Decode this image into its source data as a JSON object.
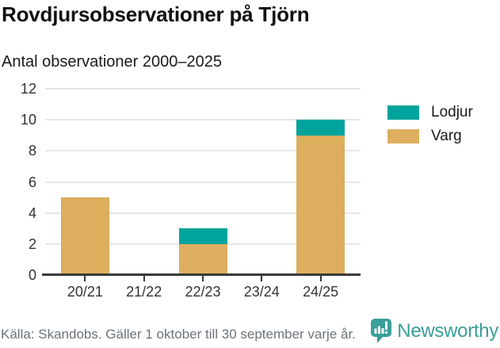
{
  "header": {
    "title": "Rovdjursobservationer på Tjörn",
    "subtitle": "Antal observationer 2000–2025"
  },
  "chart_data": {
    "type": "bar",
    "stacked": true,
    "title": "Rovdjursobservationer på Tjörn",
    "subtitle": "Antal observationer 2000–2025",
    "categories": [
      "20/21",
      "21/22",
      "22/23",
      "23/24",
      "24/25"
    ],
    "series": [
      {
        "name": "Lodjur",
        "color": "#00a49c",
        "values": [
          0,
          0,
          1,
          0,
          1
        ]
      },
      {
        "name": "Varg",
        "color": "#dcae5e",
        "values": [
          5,
          0,
          2,
          0,
          9
        ]
      }
    ],
    "stack_bottom_to_top": [
      "Varg",
      "Lodjur"
    ],
    "totals": [
      5,
      0,
      3,
      0,
      10
    ],
    "xlabel": "",
    "ylabel": "",
    "ylim": [
      0,
      12
    ],
    "yticks": [
      0,
      2,
      4,
      6,
      8,
      10,
      12
    ],
    "grid": true,
    "legend_position": "right"
  },
  "legend": {
    "items": [
      {
        "label": "Lodjur",
        "color": "#00a49c"
      },
      {
        "label": "Varg",
        "color": "#dcae5e"
      }
    ]
  },
  "footer": {
    "source": "Källa: Skandobs. Gäller 1 oktober till 30 september varje år.",
    "brand": "Newsworthy"
  },
  "colors": {
    "lodjur": "#00a49c",
    "varg": "#dcae5e",
    "grid": "#e6e6e6",
    "axis": "#3a3a3a",
    "text": "#1a1a1a",
    "muted": "#6a737b",
    "brand_teal": "#3a9e99"
  }
}
